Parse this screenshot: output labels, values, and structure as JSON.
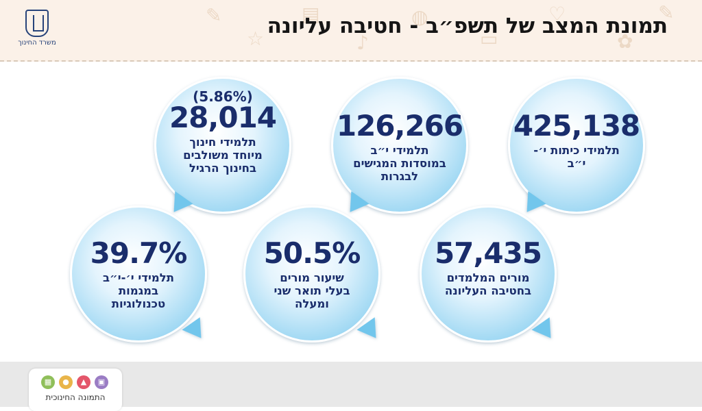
{
  "header": {
    "title": "תמונת המצב של תשפ״ב - חטיבה עליונה",
    "logo_text": "משרד החינוך"
  },
  "stats": [
    {
      "value": "425,138",
      "label": "תלמידי כיתות י׳-י״ב"
    },
    {
      "value": "126,266",
      "label": "תלמידי י״ב במוסדות המגישים לבגרות"
    },
    {
      "value": "28,014",
      "extra": "(5.86%)",
      "label": "תלמידי חינוך מיוחד משולבים בחינוך הרגיל"
    },
    {
      "value": "57,435",
      "label": "מורים המלמדים בחטיבה העליונה"
    },
    {
      "value": "50.5%",
      "label": "שיעור מורים בעלי תואר שני ומעלה"
    },
    {
      "value": "39.7%",
      "label": "תלמידי י׳-י״ב במגמות טכנולוגיות"
    }
  ],
  "footer": {
    "label": "התמונה החינוכית",
    "colors": [
      "#9a7cc4",
      "#e4566a",
      "#e9b54a",
      "#8fbf5a"
    ]
  }
}
